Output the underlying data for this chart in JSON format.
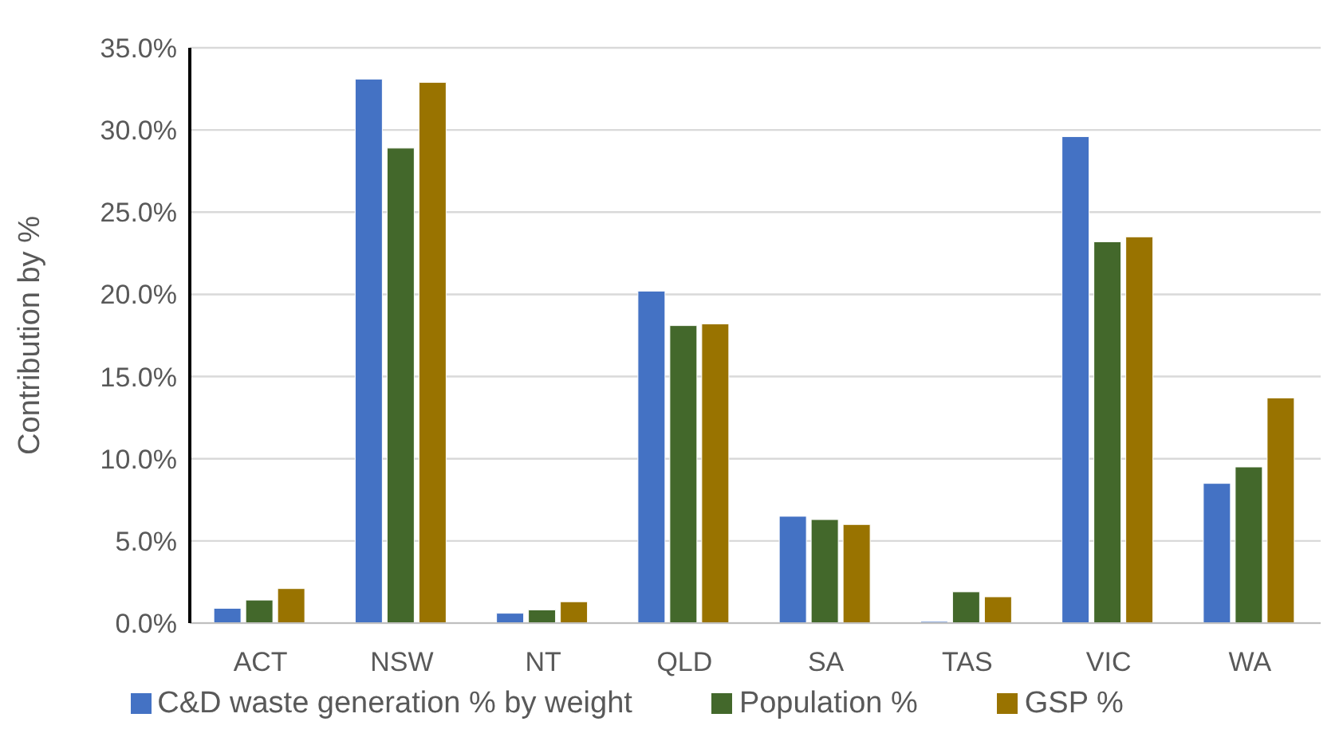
{
  "chart_data": {
    "type": "bar",
    "ylabel": "Contribution by %",
    "categories": [
      "ACT",
      "NSW",
      "NT",
      "QLD",
      "SA",
      "TAS",
      "VIC",
      "WA"
    ],
    "series": [
      {
        "name": "C&D waste generation % by weight",
        "color": "#4472c4",
        "values": [
          0.9,
          33.1,
          0.6,
          20.2,
          6.5,
          0.1,
          29.6,
          8.5
        ]
      },
      {
        "name": "Population %",
        "color": "#43682b",
        "values": [
          1.4,
          28.9,
          0.8,
          18.1,
          6.3,
          1.9,
          23.2,
          9.5
        ]
      },
      {
        "name": "GSP %",
        "color": "#997300",
        "values": [
          2.1,
          32.9,
          1.3,
          18.2,
          6.0,
          1.6,
          23.5,
          13.7
        ]
      }
    ],
    "ylim": [
      0,
      35
    ],
    "yticks": [
      {
        "value": 0,
        "label": "0.0%"
      },
      {
        "value": 5,
        "label": "5.0%"
      },
      {
        "value": 10,
        "label": "10.0%"
      },
      {
        "value": 15,
        "label": "15.0%"
      },
      {
        "value": 20,
        "label": "20.0%"
      },
      {
        "value": 25,
        "label": "25.0%"
      },
      {
        "value": 30,
        "label": "30.0%"
      },
      {
        "value": 35,
        "label": "35.0%"
      }
    ],
    "grid": "y",
    "legend": "bottom"
  }
}
